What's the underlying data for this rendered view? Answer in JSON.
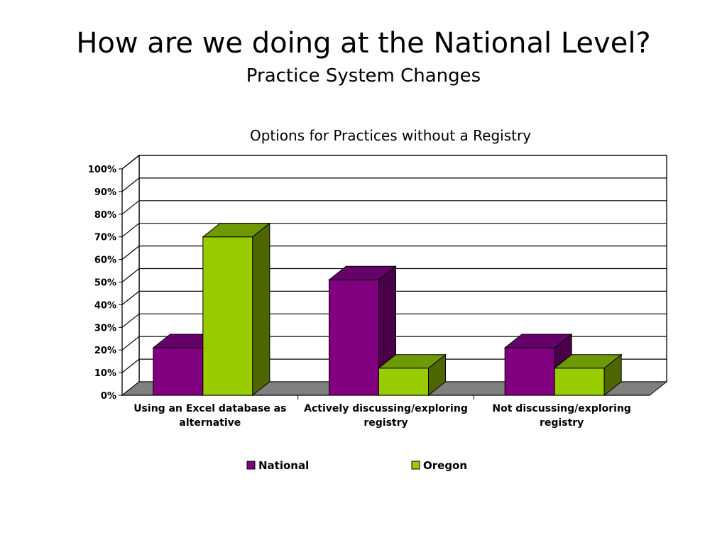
{
  "slide": {
    "title": "How are we doing at the National Level?",
    "subtitle": "Practice System Changes"
  },
  "chart_data": {
    "type": "bar",
    "title": "Options for Practices without a Registry",
    "categories": [
      [
        "Using an Excel database as",
        "alternative"
      ],
      [
        "Actively discussing/exploring",
        "registry"
      ],
      [
        "Not discussing/exploring",
        "registry"
      ]
    ],
    "series": [
      {
        "name": "National",
        "values": [
          21,
          51,
          21
        ],
        "color": "#800080",
        "side_color": "#4a0048",
        "top_color": "#66006a"
      },
      {
        "name": "Oregon",
        "values": [
          70,
          12,
          12
        ],
        "color": "#99cc00",
        "side_color": "#4d6600",
        "top_color": "#6f9900"
      }
    ],
    "ylim": [
      0,
      100
    ],
    "yticks": [
      "0%",
      "10%",
      "20%",
      "30%",
      "40%",
      "50%",
      "60%",
      "70%",
      "80%",
      "90%",
      "100%"
    ],
    "grid": true,
    "legend_position": "bottom",
    "style": "3d-clustered-column"
  }
}
